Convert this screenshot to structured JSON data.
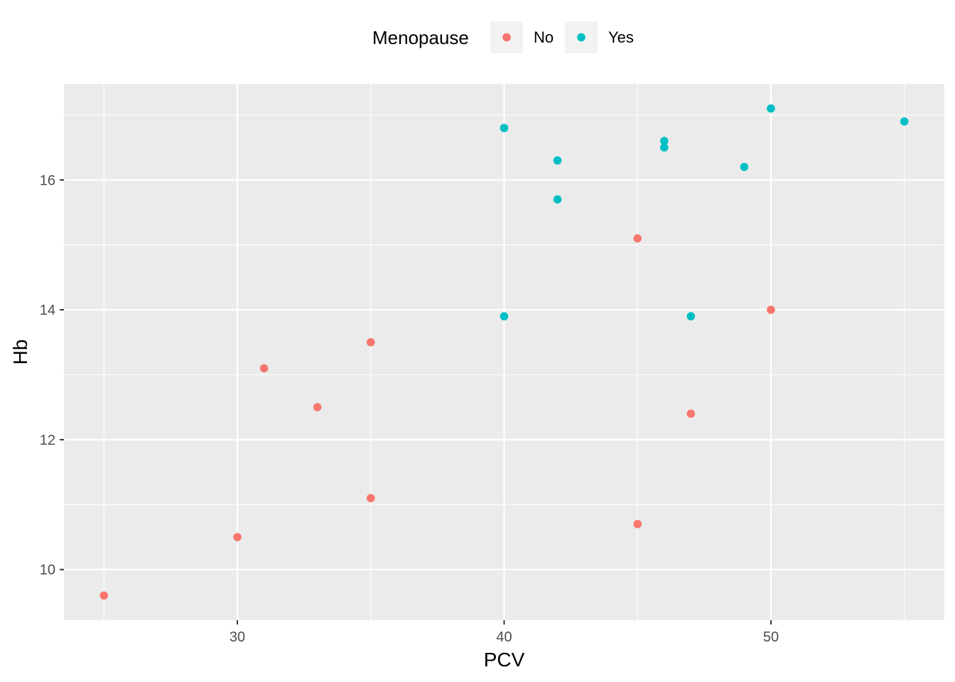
{
  "chart_data": {
    "type": "scatter",
    "title": "",
    "xlabel": "PCV",
    "ylabel": "Hb",
    "xlim": [
      23.5,
      56.5
    ],
    "ylim": [
      9.22,
      17.48
    ],
    "x_ticks": [
      30,
      40,
      50
    ],
    "y_ticks": [
      10,
      12,
      14,
      16
    ],
    "grid": true,
    "legend": {
      "title": "Menopause",
      "position": "top"
    },
    "series": [
      {
        "name": "No",
        "color": "#F8766D",
        "points": [
          {
            "x": 25,
            "y": 9.6
          },
          {
            "x": 30,
            "y": 10.5
          },
          {
            "x": 31,
            "y": 13.1
          },
          {
            "x": 33,
            "y": 12.5
          },
          {
            "x": 35,
            "y": 13.5
          },
          {
            "x": 35,
            "y": 11.1
          },
          {
            "x": 45,
            "y": 15.1
          },
          {
            "x": 45,
            "y": 10.7
          },
          {
            "x": 47,
            "y": 12.4
          },
          {
            "x": 50,
            "y": 14.0
          }
        ]
      },
      {
        "name": "Yes",
        "color": "#00BFC4",
        "points": [
          {
            "x": 40,
            "y": 16.8
          },
          {
            "x": 40,
            "y": 13.9
          },
          {
            "x": 42,
            "y": 16.3
          },
          {
            "x": 42,
            "y": 15.7
          },
          {
            "x": 46,
            "y": 16.6
          },
          {
            "x": 46,
            "y": 16.5
          },
          {
            "x": 47,
            "y": 13.9
          },
          {
            "x": 49,
            "y": 16.2
          },
          {
            "x": 50,
            "y": 17.1
          },
          {
            "x": 55,
            "y": 16.9
          }
        ]
      }
    ]
  }
}
